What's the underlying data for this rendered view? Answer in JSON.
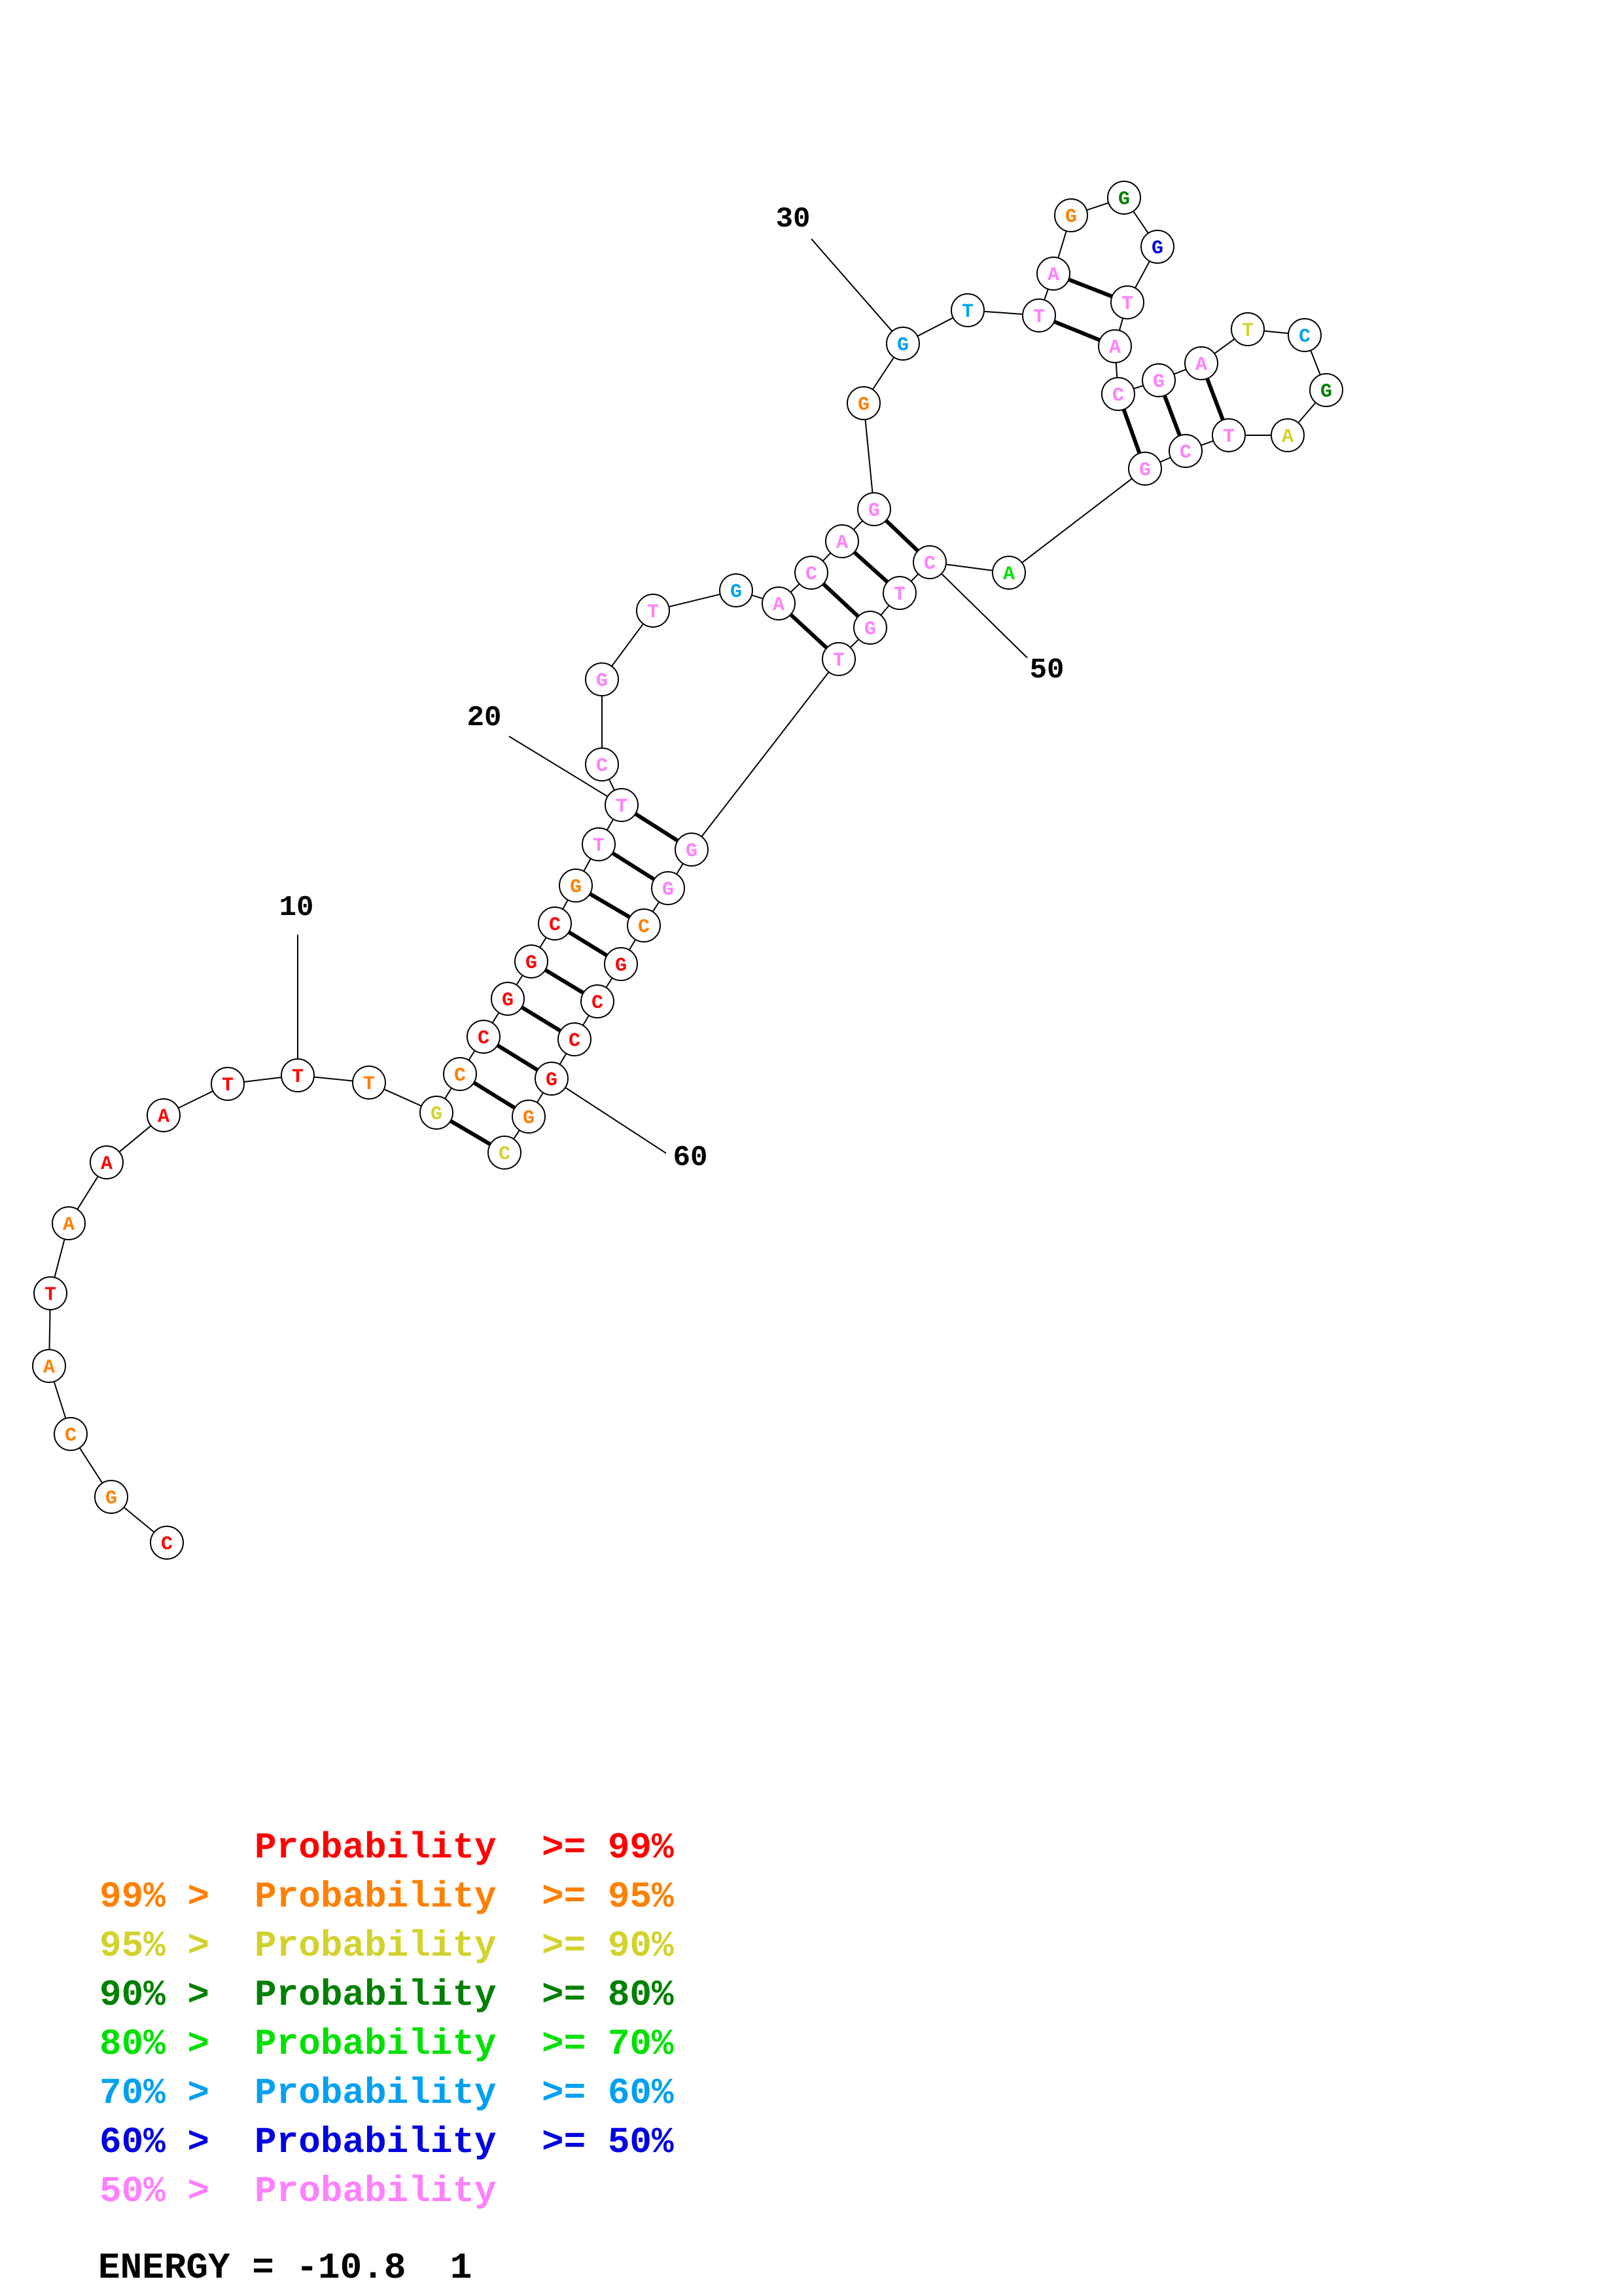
{
  "colors": {
    "p99": "#ff0000",
    "p95": "#ff8000",
    "p90": "#d2d22d",
    "p80": "#008000",
    "p70": "#00e000",
    "p60": "#00a0f0",
    "p50": "#0000e0",
    "plow": "#ff80ff"
  },
  "nucleotides": [
    {
      "index": 1,
      "base": "C",
      "prob": "p99"
    },
    {
      "index": 2,
      "base": "G",
      "prob": "p95"
    },
    {
      "index": 3,
      "base": "C",
      "prob": "p95"
    },
    {
      "index": 4,
      "base": "A",
      "prob": "p95"
    },
    {
      "index": 5,
      "base": "T",
      "prob": "p99"
    },
    {
      "index": 6,
      "base": "A",
      "prob": "p95"
    },
    {
      "index": 7,
      "base": "A",
      "prob": "p99"
    },
    {
      "index": 8,
      "base": "A",
      "prob": "p99"
    },
    {
      "index": 9,
      "base": "T",
      "prob": "p99"
    },
    {
      "index": 10,
      "base": "T",
      "prob": "p99"
    },
    {
      "index": 11,
      "base": "T",
      "prob": "p95"
    },
    {
      "index": 12,
      "base": "G",
      "prob": "p90"
    },
    {
      "index": 13,
      "base": "C",
      "prob": "p95"
    },
    {
      "index": 14,
      "base": "C",
      "prob": "p99"
    },
    {
      "index": 15,
      "base": "G",
      "prob": "p99"
    },
    {
      "index": 16,
      "base": "G",
      "prob": "p99"
    },
    {
      "index": 17,
      "base": "C",
      "prob": "p99"
    },
    {
      "index": 18,
      "base": "G",
      "prob": "p95"
    },
    {
      "index": 19,
      "base": "T",
      "prob": "plow"
    },
    {
      "index": 20,
      "base": "T",
      "prob": "plow"
    },
    {
      "index": 21,
      "base": "C",
      "prob": "plow"
    },
    {
      "index": 22,
      "base": "G",
      "prob": "plow"
    },
    {
      "index": 23,
      "base": "T",
      "prob": "plow"
    },
    {
      "index": 24,
      "base": "G",
      "prob": "p60"
    },
    {
      "index": 25,
      "base": "A",
      "prob": "plow"
    },
    {
      "index": 26,
      "base": "C",
      "prob": "plow"
    },
    {
      "index": 27,
      "base": "A",
      "prob": "plow"
    },
    {
      "index": 28,
      "base": "G",
      "prob": "plow"
    },
    {
      "index": 29,
      "base": "G",
      "prob": "p95"
    },
    {
      "index": 30,
      "base": "G",
      "prob": "p60"
    },
    {
      "index": 31,
      "base": "T",
      "prob": "p60"
    },
    {
      "index": 32,
      "base": "T",
      "prob": "plow"
    },
    {
      "index": 33,
      "base": "A",
      "prob": "plow"
    },
    {
      "index": 34,
      "base": "G",
      "prob": "p95"
    },
    {
      "index": 35,
      "base": "G",
      "prob": "p80"
    },
    {
      "index": 36,
      "base": "G",
      "prob": "p50"
    },
    {
      "index": 37,
      "base": "T",
      "prob": "plow"
    },
    {
      "index": 38,
      "base": "A",
      "prob": "plow"
    },
    {
      "index": 39,
      "base": "C",
      "prob": "plow"
    },
    {
      "index": 40,
      "base": "G",
      "prob": "plow"
    },
    {
      "index": 41,
      "base": "A",
      "prob": "plow"
    },
    {
      "index": 42,
      "base": "T",
      "prob": "p90"
    },
    {
      "index": 43,
      "base": "C",
      "prob": "p60"
    },
    {
      "index": 44,
      "base": "G",
      "prob": "p80"
    },
    {
      "index": 45,
      "base": "A",
      "prob": "p90"
    },
    {
      "index": 46,
      "base": "T",
      "prob": "plow"
    },
    {
      "index": 47,
      "base": "C",
      "prob": "plow"
    },
    {
      "index": 48,
      "base": "G",
      "prob": "plow"
    },
    {
      "index": 49,
      "base": "A",
      "prob": "p70"
    },
    {
      "index": 50,
      "base": "C",
      "prob": "plow"
    },
    {
      "index": 51,
      "base": "T",
      "prob": "plow"
    },
    {
      "index": 52,
      "base": "G",
      "prob": "plow"
    },
    {
      "index": 53,
      "base": "T",
      "prob": "plow"
    },
    {
      "index": 54,
      "base": "G",
      "prob": "plow"
    },
    {
      "index": 55,
      "base": "G",
      "prob": "plow"
    },
    {
      "index": 56,
      "base": "C",
      "prob": "p95"
    },
    {
      "index": 57,
      "base": "G",
      "prob": "p99"
    },
    {
      "index": 58,
      "base": "C",
      "prob": "p99"
    },
    {
      "index": 59,
      "base": "C",
      "prob": "p99"
    },
    {
      "index": 60,
      "base": "G",
      "prob": "p99"
    },
    {
      "index": 61,
      "base": "G",
      "prob": "p95"
    },
    {
      "index": 62,
      "base": "C",
      "prob": "p90"
    }
  ],
  "pairs": [
    [
      12,
      62
    ],
    [
      13,
      61
    ],
    [
      14,
      60
    ],
    [
      15,
      59
    ],
    [
      16,
      58
    ],
    [
      17,
      57
    ],
    [
      18,
      56
    ],
    [
      19,
      55
    ],
    [
      20,
      54
    ],
    [
      25,
      53
    ],
    [
      26,
      52
    ],
    [
      27,
      51
    ],
    [
      28,
      50
    ],
    [
      32,
      38
    ],
    [
      33,
      37
    ],
    [
      39,
      48
    ],
    [
      40,
      47
    ],
    [
      41,
      46
    ]
  ],
  "position_labels": [
    "10",
    "20",
    "30",
    "50",
    "60"
  ],
  "legend": [
    {
      "left": "",
      "mid": "Probability",
      "right": ">= 99%",
      "prob": "p99"
    },
    {
      "left": "99% >",
      "mid": "Probability",
      "right": ">= 95%",
      "prob": "p95"
    },
    {
      "left": "95% >",
      "mid": "Probability",
      "right": ">= 90%",
      "prob": "p90"
    },
    {
      "left": "90% >",
      "mid": "Probability",
      "right": ">= 80%",
      "prob": "p80"
    },
    {
      "left": "80% >",
      "mid": "Probability",
      "right": ">= 70%",
      "prob": "p70"
    },
    {
      "left": "70% >",
      "mid": "Probability",
      "right": ">= 60%",
      "prob": "p60"
    },
    {
      "left": "60% >",
      "mid": "Probability",
      "right": ">= 50%",
      "prob": "p50"
    },
    {
      "left": "50% >",
      "mid": "Probability",
      "right": "",
      "prob": "plow"
    }
  ],
  "energy": "ENERGY = -10.8  1"
}
